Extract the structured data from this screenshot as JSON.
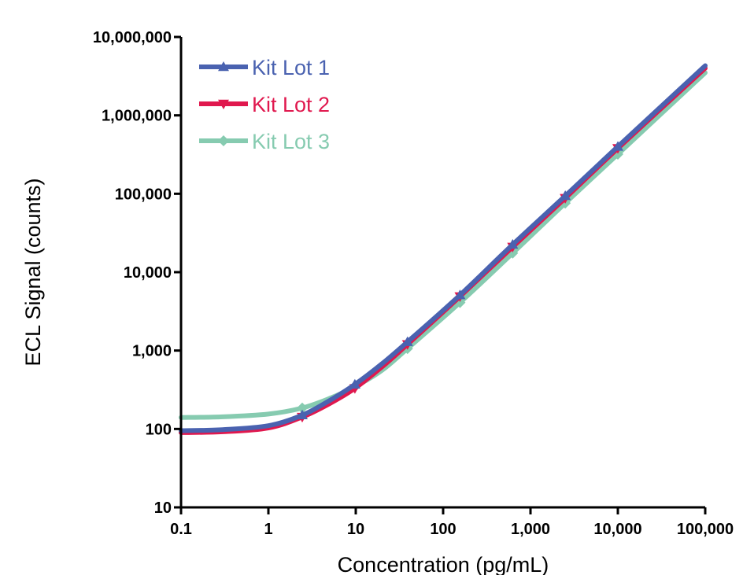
{
  "chart_data": {
    "type": "line",
    "xlabel": "Concentration (pg/mL)",
    "ylabel": "ECL Signal (counts)",
    "x_scale": "log",
    "y_scale": "log",
    "xlim": [
      0.1,
      100000
    ],
    "ylim": [
      10,
      10000000
    ],
    "x_ticks": [
      {
        "value": 0.1,
        "label": "0.1"
      },
      {
        "value": 1,
        "label": "1"
      },
      {
        "value": 10,
        "label": "10"
      },
      {
        "value": 100,
        "label": "100"
      },
      {
        "value": 1000,
        "label": "1,000"
      },
      {
        "value": 10000,
        "label": "10,000"
      },
      {
        "value": 100000,
        "label": "100,000"
      }
    ],
    "y_ticks": [
      {
        "value": 10,
        "label": "10"
      },
      {
        "value": 100,
        "label": "100"
      },
      {
        "value": 1000,
        "label": "1,000"
      },
      {
        "value": 10000,
        "label": "10,000"
      },
      {
        "value": 100000,
        "label": "100,000"
      },
      {
        "value": 1000000,
        "label": "1,000,000"
      },
      {
        "value": 10000000,
        "label": "10,000,000"
      }
    ],
    "grid": false,
    "legend_position": "top-left",
    "series": [
      {
        "name": "Kit Lot 1",
        "color": "#4a62b0",
        "marker": "triangle-up",
        "points": [
          [
            2.44,
            150
          ],
          [
            9.77,
            370
          ],
          [
            39.1,
            1290
          ],
          [
            156,
            5100
          ],
          [
            625,
            22500
          ],
          [
            2500,
            94000
          ],
          [
            10000,
            400000
          ]
        ],
        "curve": [
          [
            0.1,
            95
          ],
          [
            0.3,
            98
          ],
          [
            1,
            110
          ],
          [
            2.44,
            150
          ],
          [
            5,
            230
          ],
          [
            9.77,
            370
          ],
          [
            20,
            680
          ],
          [
            39.1,
            1290
          ],
          [
            156,
            5100
          ],
          [
            625,
            22500
          ],
          [
            2500,
            94000
          ],
          [
            10000,
            400000
          ],
          [
            100000,
            4300000
          ]
        ]
      },
      {
        "name": "Kit Lot 2",
        "color": "#e0184e",
        "marker": "triangle-down",
        "points": [
          [
            2.44,
            142
          ],
          [
            9.77,
            330
          ],
          [
            39.1,
            1200
          ],
          [
            156,
            4900
          ],
          [
            625,
            21000
          ],
          [
            2500,
            88000
          ],
          [
            10000,
            380000
          ]
        ],
        "curve": [
          [
            0.1,
            90
          ],
          [
            0.3,
            92
          ],
          [
            1,
            103
          ],
          [
            2.44,
            142
          ],
          [
            5,
            210
          ],
          [
            9.77,
            330
          ],
          [
            20,
            620
          ],
          [
            39.1,
            1200
          ],
          [
            156,
            4900
          ],
          [
            625,
            21000
          ],
          [
            2500,
            88000
          ],
          [
            10000,
            380000
          ],
          [
            100000,
            4000000
          ]
        ]
      },
      {
        "name": "Kit Lot 3",
        "color": "#86cbb0",
        "marker": "diamond",
        "points": [
          [
            2.44,
            185
          ],
          [
            9.77,
            345
          ],
          [
            39.1,
            1060
          ],
          [
            156,
            4100
          ],
          [
            625,
            17500
          ],
          [
            2500,
            76000
          ],
          [
            10000,
            320000
          ]
        ],
        "curve": [
          [
            0.1,
            140
          ],
          [
            0.3,
            143
          ],
          [
            1,
            155
          ],
          [
            2.44,
            185
          ],
          [
            5,
            245
          ],
          [
            9.77,
            345
          ],
          [
            20,
            560
          ],
          [
            39.1,
            1060
          ],
          [
            156,
            4100
          ],
          [
            625,
            17500
          ],
          [
            2500,
            76000
          ],
          [
            10000,
            320000
          ],
          [
            100000,
            3500000
          ]
        ]
      }
    ]
  }
}
